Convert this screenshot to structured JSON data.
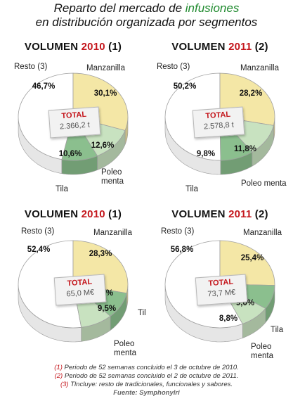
{
  "title": {
    "line1_pre": "Reparto del mercado de ",
    "line1_hl": "infusiones",
    "line2": "en distribución organizada por segmentos"
  },
  "colors": {
    "resto": "#ffffff",
    "manzanilla": "#f4e7a6",
    "poleo": "#c8e2c0",
    "tila": "#8bbf8e",
    "year_red": "#c4161c"
  },
  "chart_data": [
    {
      "type": "pie",
      "title_pre": "VOLUMEN ",
      "title_year": "2010",
      "title_note": " (1)",
      "total_label": "TOTAL",
      "total_value": "2.366,2 t",
      "segments": [
        {
          "name": "Resto (3)",
          "value": 46.7,
          "pct": "46,7%"
        },
        {
          "name": "Manzanilla",
          "value": 30.1,
          "pct": "30,1%"
        },
        {
          "name": "Poleo menta",
          "value": 12.6,
          "pct": "12,6%"
        },
        {
          "name": "Tila",
          "value": 10.6,
          "pct": "10,6%"
        }
      ]
    },
    {
      "type": "pie",
      "title_pre": "VOLUMEN ",
      "title_year": "2011",
      "title_note": " (2)",
      "total_label": "TOTAL",
      "total_value": "2.578,8 t",
      "segments": [
        {
          "name": "Resto (3)",
          "value": 50.2,
          "pct": "50,2%"
        },
        {
          "name": "Manzanilla",
          "value": 28.2,
          "pct": "28,2%"
        },
        {
          "name": "Poleo menta",
          "value": 11.8,
          "pct": "11,8%"
        },
        {
          "name": "Tila",
          "value": 9.8,
          "pct": "9,8%"
        }
      ]
    },
    {
      "type": "pie",
      "title_pre": "VOLUMEN ",
      "title_year": "2010",
      "title_note": " (1)",
      "total_label": "TOTAL",
      "total_value": "65,0 M€",
      "segments": [
        {
          "name": "Resto (3)",
          "value": 52.4,
          "pct": "52,4%"
        },
        {
          "name": "Manzanilla",
          "value": 28.3,
          "pct": "28,3%"
        },
        {
          "name": "Tila",
          "value": 9.8,
          "pct": "9,8%"
        },
        {
          "name": "Poleo menta",
          "value": 9.5,
          "pct": "9,5%"
        }
      ]
    },
    {
      "type": "pie",
      "title_pre": "VOLUMEN ",
      "title_year": "2011",
      "title_note": " (2)",
      "total_label": "TOTAL",
      "total_value": "73,7 M€",
      "segments": [
        {
          "name": "Resto (3)",
          "value": 56.8,
          "pct": "56,8%"
        },
        {
          "name": "Manzanilla",
          "value": 25.4,
          "pct": "25,4%"
        },
        {
          "name": "Tila",
          "value": 9.0,
          "pct": "9,0%"
        },
        {
          "name": "Poleo menta",
          "value": 8.8,
          "pct": "8,8%"
        }
      ]
    }
  ],
  "footer": {
    "n1": "(1)",
    "t1": " Periodo de 52 semanas concluido el 3 de octubre de 2010.",
    "n2": "(2)",
    "t2": " Periodo de 52 semanas concluido el 2 de octubre de 2011.",
    "n3": "(3)",
    "t3": " Tlncluye: resto de tradicionales, funcionales y sabores.",
    "source": "Fuente: SymphonyIri"
  }
}
